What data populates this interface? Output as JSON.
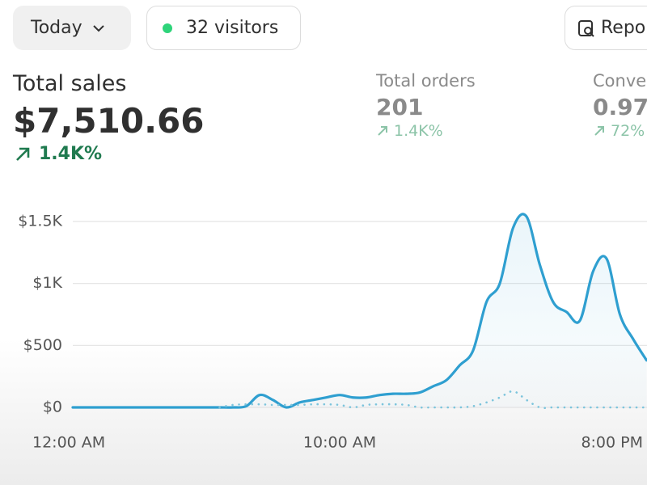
{
  "toolbar": {
    "date_filter": "Today",
    "visitors": "32 visitors",
    "reports": "Repo"
  },
  "metrics": [
    {
      "label": "Total sales",
      "value": "$7,510.66",
      "change": "1.4K%"
    },
    {
      "label": "Total orders",
      "value": "201",
      "change": "1.4K%"
    },
    {
      "label": "Conve",
      "value": "0.97",
      "change": "72%"
    }
  ],
  "chart_data": {
    "type": "line",
    "x": [
      0,
      0.5,
      1,
      1.5,
      2,
      2.5,
      3,
      3.5,
      4,
      4.5,
      5,
      5.5,
      6,
      6.5,
      7,
      7.5,
      8,
      8.5,
      9,
      9.5,
      10,
      10.5,
      11,
      11.5,
      12,
      12.5,
      13,
      13.5,
      14,
      14.5,
      15,
      15.5,
      16,
      16.5,
      17,
      17.5,
      18,
      18.5,
      19,
      19.5,
      20,
      20.5,
      21,
      21.5
    ],
    "series": [
      {
        "color": "#2f9fd0",
        "values": [
          0,
          0,
          0,
          0,
          0,
          0,
          0,
          0,
          0,
          0,
          0,
          0,
          0,
          10,
          100,
          60,
          0,
          40,
          60,
          80,
          100,
          80,
          80,
          100,
          110,
          110,
          120,
          170,
          220,
          340,
          460,
          850,
          1000,
          1450,
          1540,
          1150,
          850,
          770,
          700,
          1100,
          1200,
          750,
          550,
          380
        ]
      },
      {
        "color": "#7cc4dc",
        "dashed": true,
        "values": [
          null,
          null,
          null,
          null,
          null,
          null,
          null,
          null,
          null,
          null,
          null,
          0,
          20,
          25,
          25,
          20,
          20,
          20,
          25,
          25,
          20,
          0,
          20,
          25,
          25,
          20,
          0,
          0,
          0,
          0,
          10,
          40,
          80,
          130,
          60,
          0,
          0,
          0,
          0,
          0,
          0,
          0,
          0,
          0
        ]
      }
    ],
    "xlim": [
      0,
      21.5
    ],
    "xticks": [
      {
        "value": 0,
        "label": "12:00 AM"
      },
      {
        "value": 10,
        "label": "10:00 AM"
      },
      {
        "value": 20,
        "label": "8:00 PM"
      }
    ],
    "ylim": [
      0,
      1500
    ],
    "yticks": [
      {
        "value": 0,
        "label": "$0"
      },
      {
        "value": 500,
        "label": "$500"
      },
      {
        "value": 1000,
        "label": "$1K"
      },
      {
        "value": 1500,
        "label": "$1.5K"
      }
    ],
    "grid": true
  }
}
